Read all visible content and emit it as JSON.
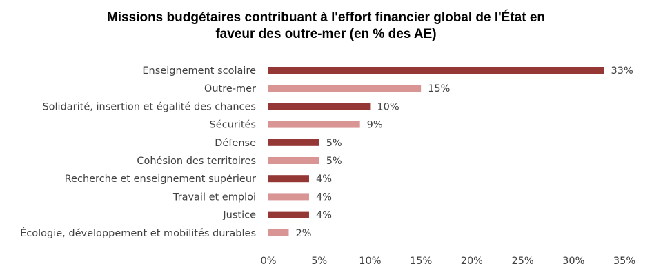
{
  "chart_data": {
    "type": "bar",
    "orientation": "horizontal",
    "title_lines": [
      "Missions budgétaires contribuant à l'effort financier global de l'État en",
      "faveur des outre-mer (en % des AE)"
    ],
    "categories": [
      "Enseignement scolaire",
      "Outre-mer",
      "Solidarité, insertion et égalité des chances",
      "Sécurités",
      "Défense",
      "Cohésion des territoires",
      "Recherche et enseignement supérieur",
      "Travail et emploi",
      "Justice",
      "Écologie, développement et mobilités durables"
    ],
    "values": [
      33,
      15,
      10,
      9,
      5,
      5,
      4,
      4,
      4,
      2
    ],
    "value_labels": [
      "33%",
      "15%",
      "10%",
      "9%",
      "5%",
      "5%",
      "4%",
      "4%",
      "4%",
      "2%"
    ],
    "bar_colors": [
      "#953735",
      "#D99594",
      "#953735",
      "#D99594",
      "#953735",
      "#D99594",
      "#953735",
      "#D99594",
      "#953735",
      "#D99594"
    ],
    "xlim": [
      0,
      35
    ],
    "xticks": [
      0,
      5,
      10,
      15,
      20,
      25,
      30,
      35
    ],
    "xtick_labels": [
      "0%",
      "5%",
      "10%",
      "15%",
      "20%",
      "25%",
      "30%",
      "35%"
    ],
    "xlabel": "",
    "ylabel": "",
    "grid": false,
    "legend": "none"
  }
}
